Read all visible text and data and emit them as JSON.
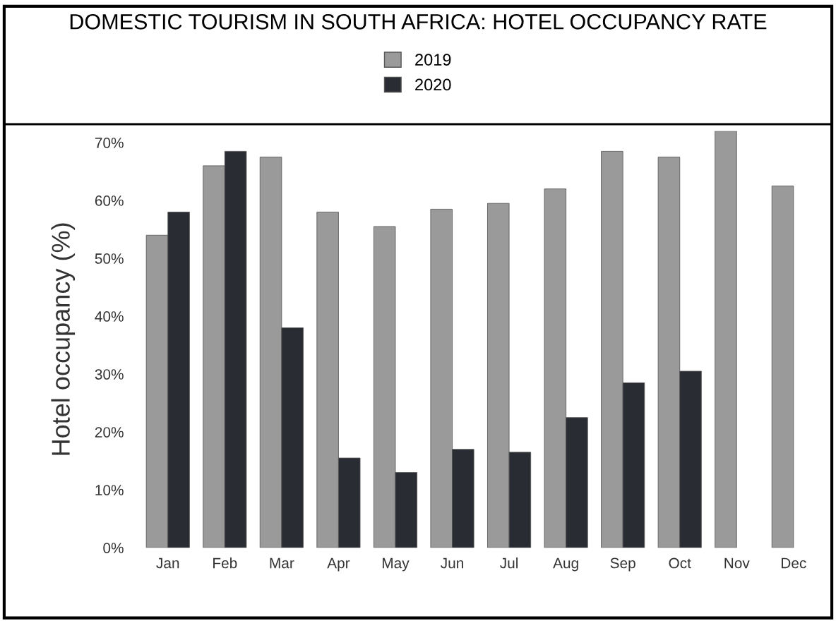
{
  "chart_data": {
    "type": "bar",
    "title": "DOMESTIC TOURISM IN SOUTH AFRICA: HOTEL OCCUPANCY RATE",
    "ylabel": "Hotel occupancy (%)",
    "categories": [
      "Jan",
      "Feb",
      "Mar",
      "Apr",
      "May",
      "Jun",
      "Jul",
      "Aug",
      "Sep",
      "Oct",
      "Nov",
      "Dec"
    ],
    "series": [
      {
        "name": "2019",
        "color": "#9a9a9a",
        "values": [
          54,
          66,
          67.5,
          58,
          55.5,
          58.5,
          59.5,
          62,
          68.5,
          67.5,
          72,
          62.5
        ]
      },
      {
        "name": "2020",
        "color": "#2a2c33",
        "values": [
          58,
          68.5,
          38,
          15.5,
          13,
          17,
          16.5,
          22.5,
          28.5,
          30.5,
          null,
          null
        ]
      }
    ],
    "ylim": [
      0,
      72
    ],
    "yticks": [
      {
        "value": 0,
        "label": "0%"
      },
      {
        "value": 10,
        "label": "10%"
      },
      {
        "value": 20,
        "label": "20%"
      },
      {
        "value": 30,
        "label": "30%"
      },
      {
        "value": 40,
        "label": "40%"
      },
      {
        "value": 50,
        "label": "50%"
      },
      {
        "value": 60,
        "label": "60%"
      },
      {
        "value": 70,
        "label": "70%"
      }
    ],
    "grid": false,
    "legend": "top"
  }
}
